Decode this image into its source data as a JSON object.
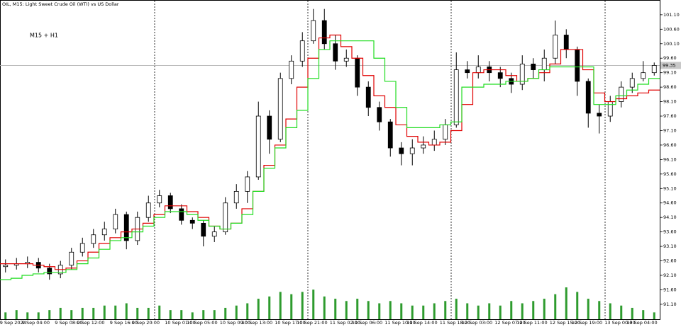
{
  "chart_data": {
    "type": "candlestick",
    "title": "OIL, M15: Light Sweet Crude Oil (WTI) vs US Dollar",
    "annotation": "M15 + H1",
    "annotation_color": "#e00000",
    "categories": [
      "9 Sep 2024",
      null,
      "9 Sep 04:00",
      null,
      null,
      "9 Sep 08:00",
      null,
      "9 Sep 12:00",
      null,
      null,
      "9 Sep 16:00",
      null,
      "9 Sep 20:00",
      null,
      null,
      "10 Sep 01:00",
      null,
      "10 Sep 05:00",
      null,
      null,
      "10 Sep 09:00",
      null,
      "10 Sep 13:00",
      null,
      null,
      "10 Sep 17:00",
      null,
      "10 Sep 21:00",
      null,
      null,
      "11 Sep 02:00",
      null,
      "11 Sep 06:00",
      null,
      null,
      "11 Sep 10:00",
      null,
      "11 Sep 14:00",
      null,
      null,
      "11 Sep 18:00",
      null,
      "12 Sep 03:00",
      null,
      null,
      "12 Sep 07:00",
      null,
      "12 Sep 11:00",
      null,
      null,
      "12 Sep 15:00",
      null,
      "12 Sep 19:00",
      null,
      null,
      "13 Sep 00:00",
      null,
      "13 Sep 04:00",
      null,
      null
    ],
    "open": [
      92.4,
      92.45,
      92.5,
      92.55,
      92.35,
      92.15,
      92.45,
      92.9,
      93.2,
      93.5,
      93.7,
      94.2,
      93.3,
      94.1,
      94.6,
      94.85,
      94.4,
      94.0,
      93.9,
      93.45,
      93.6,
      94.6,
      95.0,
      95.5,
      97.6,
      96.8,
      98.9,
      99.5,
      100.2,
      100.9,
      100.1,
      99.5,
      99.6,
      98.6,
      97.9,
      97.4,
      96.5,
      96.3,
      96.5,
      96.6,
      96.8,
      97.3,
      99.2,
      99.1,
      99.3,
      99.1,
      98.9,
      98.7,
      99.4,
      99.2,
      99.6,
      100.4,
      99.9,
      98.8,
      97.7,
      97.6,
      98.1,
      98.6,
      98.9,
      99.1
    ],
    "high": [
      92.65,
      92.7,
      92.75,
      92.7,
      92.5,
      92.6,
      93.05,
      93.4,
      93.7,
      93.95,
      94.4,
      94.3,
      94.3,
      94.85,
      95.05,
      94.95,
      94.55,
      94.1,
      94.0,
      93.8,
      94.8,
      95.25,
      95.7,
      98.1,
      97.8,
      99.1,
      99.7,
      100.5,
      101.3,
      101.3,
      100.4,
      99.9,
      99.7,
      98.8,
      98.1,
      97.5,
      96.7,
      96.8,
      96.9,
      97.1,
      97.5,
      99.8,
      99.5,
      99.7,
      99.5,
      99.3,
      99.1,
      99.7,
      99.6,
      99.9,
      100.9,
      100.6,
      100.0,
      98.9,
      98.0,
      98.3,
      98.8,
      99.1,
      99.5,
      99.45
    ],
    "low": [
      92.2,
      92.3,
      92.35,
      92.2,
      91.95,
      92.0,
      92.3,
      92.75,
      93.05,
      93.3,
      93.55,
      93.0,
      93.15,
      93.95,
      94.45,
      94.25,
      93.85,
      93.7,
      93.1,
      93.25,
      93.5,
      94.4,
      94.6,
      95.4,
      96.3,
      96.7,
      98.7,
      99.3,
      100.1,
      99.9,
      99.2,
      99.3,
      98.3,
      97.6,
      97.1,
      96.2,
      95.9,
      95.9,
      96.3,
      96.4,
      96.6,
      97.2,
      98.9,
      98.9,
      98.8,
      98.6,
      98.4,
      98.5,
      98.9,
      98.8,
      99.4,
      99.6,
      98.3,
      97.2,
      97.0,
      97.4,
      97.9,
      98.4,
      98.8,
      99.0
    ],
    "close": [
      92.45,
      92.5,
      92.55,
      92.35,
      92.15,
      92.45,
      92.9,
      93.2,
      93.5,
      93.7,
      94.2,
      93.3,
      94.1,
      94.6,
      94.85,
      94.4,
      94.0,
      93.9,
      93.45,
      93.6,
      94.6,
      95.0,
      95.5,
      97.6,
      96.8,
      98.9,
      99.5,
      100.2,
      100.9,
      100.1,
      99.5,
      99.6,
      98.6,
      97.9,
      97.4,
      96.5,
      96.3,
      96.5,
      96.6,
      96.8,
      97.3,
      99.2,
      99.1,
      99.3,
      99.1,
      98.9,
      98.7,
      99.4,
      99.2,
      99.6,
      100.4,
      99.9,
      98.8,
      97.7,
      97.6,
      98.1,
      98.6,
      98.9,
      99.1,
      99.35
    ],
    "candle_color": "#000000",
    "lines": [
      {
        "color": "#e00000",
        "values": [
          92.5,
          92.5,
          92.5,
          92.45,
          92.4,
          92.3,
          92.35,
          92.6,
          92.9,
          93.2,
          93.4,
          93.6,
          93.7,
          93.9,
          94.2,
          94.5,
          94.5,
          94.3,
          94.1,
          93.8,
          93.7,
          93.9,
          94.4,
          95.0,
          95.9,
          96.6,
          97.5,
          98.6,
          99.6,
          100.3,
          100.4,
          100.0,
          99.6,
          99.0,
          98.3,
          97.9,
          97.3,
          96.9,
          96.7,
          96.6,
          96.7,
          97.1,
          98.0,
          99.1,
          99.2,
          99.2,
          99.0,
          98.8,
          98.9,
          99.1,
          99.4,
          99.9,
          99.9,
          99.2,
          98.4,
          98.1,
          98.2,
          98.3,
          98.4,
          98.5
        ]
      },
      {
        "color": "#22dd22",
        "values": [
          91.95,
          92.0,
          92.1,
          92.15,
          92.2,
          92.2,
          92.3,
          92.5,
          92.7,
          93.0,
          93.3,
          93.4,
          93.6,
          93.8,
          94.1,
          94.3,
          94.3,
          94.2,
          94.0,
          93.8,
          93.7,
          93.9,
          94.2,
          95.0,
          95.8,
          96.5,
          97.2,
          97.8,
          98.9,
          99.9,
          100.2,
          100.2,
          100.2,
          100.2,
          99.6,
          98.8,
          97.9,
          97.2,
          97.2,
          97.2,
          97.3,
          97.4,
          98.6,
          98.6,
          98.7,
          98.7,
          98.8,
          98.8,
          98.9,
          99.2,
          99.3,
          99.3,
          99.3,
          99.3,
          98.0,
          98.0,
          98.3,
          98.5,
          98.7,
          98.9
        ]
      }
    ],
    "volume": [
      3,
      4,
      3,
      3,
      4,
      5,
      4,
      5,
      5,
      6,
      6,
      7,
      5,
      5,
      6,
      4,
      4,
      3,
      4,
      4,
      5,
      6,
      7,
      9,
      10,
      12,
      11,
      12,
      13,
      10,
      9,
      8,
      9,
      8,
      7,
      8,
      7,
      6,
      6,
      7,
      8,
      9,
      7,
      6,
      7,
      6,
      8,
      7,
      8,
      9,
      11,
      14,
      12,
      9,
      8,
      7,
      6,
      5,
      4,
      3
    ],
    "volume_color": "#2e9b2e",
    "current_price": 99.35,
    "ylim": [
      90.56,
      101.61
    ],
    "yticks": [
      {
        "value": 101.1,
        "label": "101.10"
      },
      {
        "value": 100.6,
        "label": "100.60"
      },
      {
        "value": 100.1,
        "label": "100.10"
      },
      {
        "value": 99.6,
        "label": "99.60"
      },
      {
        "value": 99.1,
        "label": "99.10"
      },
      {
        "value": 98.6,
        "label": "98.60"
      },
      {
        "value": 98.1,
        "label": "98.10"
      },
      {
        "value": 97.6,
        "label": "97.60"
      },
      {
        "value": 97.1,
        "label": "97.10"
      },
      {
        "value": 96.6,
        "label": "96.60"
      },
      {
        "value": 96.1,
        "label": "96.10"
      },
      {
        "value": 95.6,
        "label": "95.60"
      },
      {
        "value": 95.1,
        "label": "95.10"
      },
      {
        "value": 94.6,
        "label": "94.60"
      },
      {
        "value": 94.1,
        "label": "94.10"
      },
      {
        "value": 93.6,
        "label": "93.60"
      },
      {
        "value": 93.1,
        "label": "93.10"
      },
      {
        "value": 92.6,
        "label": "92.60"
      },
      {
        "value": 92.1,
        "label": "92.10"
      },
      {
        "value": 91.6,
        "label": "91.60"
      },
      {
        "value": 91.1,
        "label": "91.10"
      }
    ]
  }
}
